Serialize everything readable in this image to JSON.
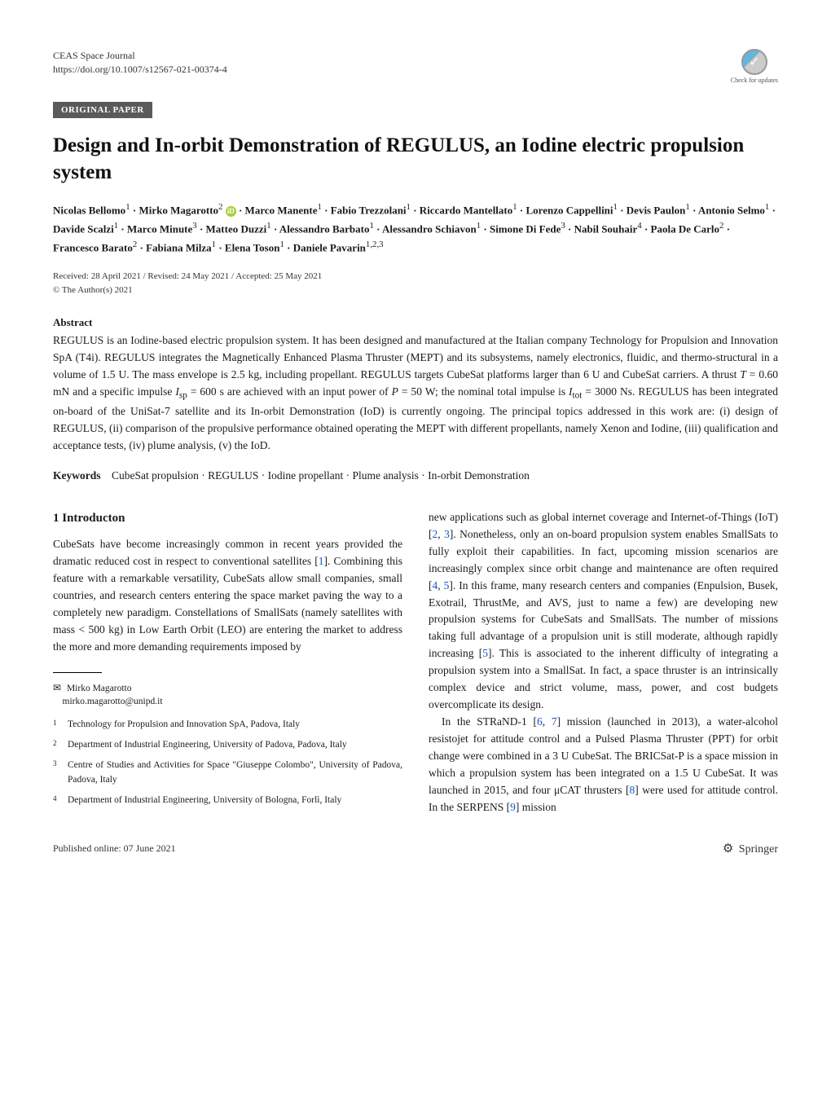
{
  "journal": {
    "name": "CEAS Space Journal",
    "doi": "https://doi.org/10.1007/s12567-021-00374-4"
  },
  "crossmark": {
    "label": "Check for updates"
  },
  "category": "ORIGINAL PAPER",
  "title": "Design and In-orbit Demonstration of REGULUS, an Iodine electric propulsion system",
  "authors_html": "Nicolas Bellomo<sup>1</sup> · Mirko Magarotto<sup>2</sup> <span class='orcid-icon' data-name='orcid-icon' data-interactable='false'>iD</span> · Marco Manente<sup>1</sup> · Fabio Trezzolani<sup>1</sup> · Riccardo Mantellato<sup>1</sup> · Lorenzo Cappellini<sup>1</sup> · Devis Paulon<sup>1</sup> · Antonio Selmo<sup>1</sup> · Davide Scalzi<sup>1</sup> · Marco Minute<sup>3</sup> · Matteo Duzzi<sup>1</sup> · Alessandro Barbato<sup>1</sup> · Alessandro Schiavon<sup>1</sup> · Simone Di Fede<sup>3</sup> · Nabil Souhair<sup>4</sup> · Paola De Carlo<sup>2</sup> · Francesco Barato<sup>2</sup> · Fabiana Milza<sup>1</sup> · Elena Toson<sup>1</sup> · Daniele Pavarin<sup>1,2,3</sup>",
  "dates": {
    "received": "Received: 28 April 2021 / Revised: 24 May 2021 / Accepted: 25 May 2021",
    "copyright": "© The Author(s) 2021"
  },
  "abstract": {
    "heading": "Abstract",
    "text_html": "REGULUS is an Iodine-based electric propulsion system. It has been designed and manufactured at the Italian company Technology for Propulsion and Innovation SpA (T4i). REGULUS integrates the Magnetically Enhanced Plasma Thruster (MEPT) and its subsystems, namely electronics, fluidic, and thermo-structural in a volume of 1.5 U. The mass envelope is 2.5 kg, including propellant. REGULUS targets CubeSat platforms larger than 6 U and CubeSat carriers. A thrust <span class='ital'>T</span> = 0.60 mN and a specific impulse <span class='ital'>I</span><sub>sp</sub> = 600 s are achieved with an input power of <span class='ital'>P</span> = 50 W; the nominal total impulse is <span class='ital'>I</span><sub>tot</sub> = 3000 Ns. REGULUS has been integrated on-board of the UniSat-7 satellite and its In-orbit Demonstration (IoD) is currently ongoing. The principal topics addressed in this work are: (i) design of REGULUS, (ii) comparison of the propulsive performance obtained operating the MEPT with different propellants, namely Xenon and Iodine, (iii) qualification and acceptance tests, (iv) plume analysis, (v) the IoD."
  },
  "keywords": {
    "label": "Keywords",
    "text": "CubeSat propulsion · REGULUS · Iodine propellant · Plume analysis · In-orbit Demonstration"
  },
  "section1": {
    "heading": "1 Introducton",
    "col_left_html": "CubeSats have become increasingly common in recent years provided the dramatic reduced cost in respect to conventional satellites [<span class='ref'>1</span>]. Combining this feature with a remarkable versatility, CubeSats allow small companies, small countries, and research centers entering the space market paving the way to a completely new paradigm. Constellations of SmallSats (namely satellites with mass < 500 kg) in Low Earth Orbit (LEO) are entering the market to address the more and more demanding requirements imposed by",
    "col_right_p1_html": "new applications such as global internet coverage and Internet-of-Things (IoT) [<span class='ref'>2</span>, <span class='ref'>3</span>]. Nonetheless, only an on-board propulsion system enables SmallSats to fully exploit their capabilities. In fact, upcoming mission scenarios are increasingly complex since orbit change and maintenance are often required [<span class='ref'>4</span>, <span class='ref'>5</span>]. In this frame, many research centers and companies (Enpulsion, Busek, Exotrail, ThrustMe, and AVS, just to name a few) are developing new propulsion systems for CubeSats and SmallSats. The number of missions taking full advantage of a propulsion unit is still moderate, although rapidly increasing [<span class='ref'>5</span>]. This is associated to the inherent difficulty of integrating a propulsion system into a SmallSat. In fact, a space thruster is an intrinsically complex device and strict volume, mass, power, and cost budgets overcomplicate its design.",
    "col_right_p2_html": "In the STRaND-1 [<span class='ref'>6</span>, <span class='ref'>7</span>] mission (launched in 2013), a water-alcohol resistojet for attitude control and a Pulsed Plasma Thruster (PPT) for orbit change were combined in a 3 U CubeSat. The BRICSat-P is a space mission in which a propulsion system has been integrated on a 1.5 U CubeSat. It was launched in 2015, and four μCAT thrusters [<span class='ref'>8</span>] were used for attitude control. In the SERPENS [<span class='ref'>9</span>] mission"
  },
  "corresponding": {
    "name": "Mirko Magarotto",
    "email": "mirko.magarotto@unipd.it"
  },
  "affiliations": [
    {
      "num": "1",
      "text": "Technology for Propulsion and Innovation SpA, Padova, Italy"
    },
    {
      "num": "2",
      "text": "Department of Industrial Engineering, University of Padova, Padova, Italy"
    },
    {
      "num": "3",
      "text": "Centre of Studies and Activities for Space \"Giuseppe Colombo\", University of Padova, Padova, Italy"
    },
    {
      "num": "4",
      "text": "Department of Industrial Engineering, University of Bologna, Forlì, Italy"
    }
  ],
  "footer": {
    "published": "Published online: 07 June 2021",
    "publisher": "Springer"
  }
}
